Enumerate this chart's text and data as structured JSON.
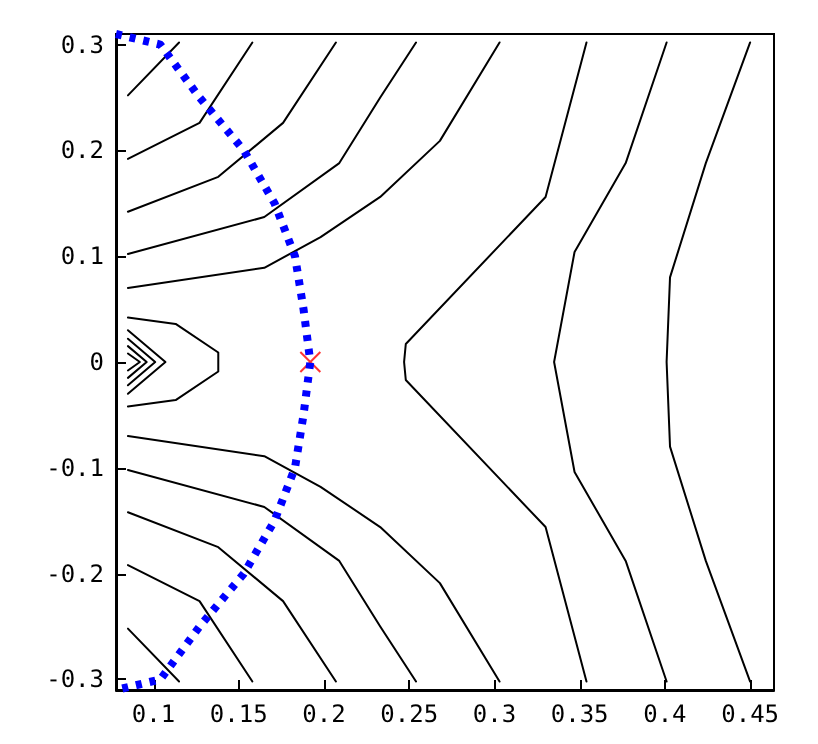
{
  "chart_data": {
    "type": "line",
    "xlim": [
      0.078,
      0.464
    ],
    "ylim": [
      -0.31,
      0.31
    ],
    "xticks": [
      0.1,
      0.15,
      0.2,
      0.25,
      0.3,
      0.35,
      0.4,
      0.45
    ],
    "yticks": [
      -0.3,
      -0.2,
      -0.1,
      0,
      0.1,
      0.2,
      0.3
    ],
    "grid": false,
    "marker": "none",
    "series": [
      {
        "color": "#000000",
        "x": [
          0.085,
          0.115
        ],
        "values": [
          0.252,
          0.302
        ]
      },
      {
        "color": "#000000",
        "x": [
          0.085,
          0.127,
          0.158
        ],
        "values": [
          0.192,
          0.226,
          0.302
        ]
      },
      {
        "color": "#000000",
        "x": [
          0.085,
          0.138,
          0.176,
          0.207
        ],
        "values": [
          0.142,
          0.175,
          0.226,
          0.302
        ]
      },
      {
        "color": "#000000",
        "x": [
          0.085,
          0.165,
          0.209,
          0.233,
          0.254
        ],
        "values": [
          0.102,
          0.137,
          0.188,
          0.25,
          0.302
        ]
      },
      {
        "color": "#000000",
        "x": [
          0.085,
          0.165,
          0.198,
          0.233,
          0.268,
          0.303
        ],
        "values": [
          0.07,
          0.089,
          0.118,
          0.156,
          0.209,
          0.302
        ]
      },
      {
        "color": "#000000",
        "x": [
          0.085,
          0.115
        ],
        "values": [
          -0.252,
          -0.302
        ]
      },
      {
        "color": "#000000",
        "x": [
          0.085,
          0.127,
          0.158
        ],
        "values": [
          -0.192,
          -0.226,
          -0.302
        ]
      },
      {
        "color": "#000000",
        "x": [
          0.085,
          0.138,
          0.176,
          0.207
        ],
        "values": [
          -0.142,
          -0.175,
          -0.226,
          -0.302
        ]
      },
      {
        "color": "#000000",
        "x": [
          0.085,
          0.165,
          0.209,
          0.233,
          0.254
        ],
        "values": [
          -0.102,
          -0.137,
          -0.188,
          -0.25,
          -0.302
        ]
      },
      {
        "color": "#000000",
        "x": [
          0.085,
          0.165,
          0.198,
          0.233,
          0.268,
          0.303
        ],
        "values": [
          -0.07,
          -0.089,
          -0.118,
          -0.156,
          -0.209,
          -0.302
        ]
      },
      {
        "color": "#000000",
        "x": [
          0.085,
          0.113,
          0.138,
          0.138,
          0.138,
          0.113,
          0.085
        ],
        "values": [
          0.042,
          0.036,
          0.009,
          0,
          -0.009,
          -0.036,
          -0.042
        ]
      },
      {
        "color": "#000000",
        "x": [
          0.085,
          0.107,
          0.085
        ],
        "values": [
          0.03,
          0,
          -0.03
        ]
      },
      {
        "color": "#000000",
        "x": [
          0.085,
          0.101,
          0.085
        ],
        "values": [
          0.022,
          0,
          -0.022
        ]
      },
      {
        "color": "#000000",
        "x": [
          0.085,
          0.096,
          0.085
        ],
        "values": [
          0.015,
          0,
          -0.015
        ]
      },
      {
        "color": "#000000",
        "x": [
          0.085,
          0.092,
          0.085
        ],
        "values": [
          0.008,
          0,
          -0.008
        ]
      },
      {
        "color": "#000000",
        "x": [
          0.354,
          0.33,
          0.248,
          0.247,
          0.248,
          0.33,
          0.354
        ],
        "values": [
          0.302,
          0.156,
          0.017,
          0,
          -0.017,
          -0.156,
          -0.302
        ]
      },
      {
        "color": "#000000",
        "x": [
          0.401,
          0.377,
          0.347,
          0.335,
          0.347,
          0.377,
          0.401
        ],
        "values": [
          0.302,
          0.188,
          0.104,
          0,
          -0.104,
          -0.188,
          -0.302
        ]
      },
      {
        "color": "#000000",
        "x": [
          0.45,
          0.424,
          0.403,
          0.401,
          0.403,
          0.424,
          0.45
        ],
        "values": [
          0.302,
          0.188,
          0.08,
          0,
          -0.08,
          -0.188,
          -0.302
        ]
      },
      {
        "color": "#0000ff",
        "line_style": "dotted",
        "x": [
          0.078,
          0.104,
          0.127,
          0.153,
          0.171,
          0.183,
          0.188,
          0.192,
          0.188,
          0.183,
          0.171,
          0.153,
          0.127,
          0.104,
          0.078
        ],
        "values": [
          0.31,
          0.3,
          0.25,
          0.2,
          0.15,
          0.1,
          0.05,
          0,
          -0.05,
          -0.1,
          -0.15,
          -0.2,
          -0.25,
          -0.3,
          -0.31
        ]
      },
      {
        "type": "scatter",
        "marker": "cross",
        "color": "#ff0000",
        "x": [
          0.192
        ],
        "values": [
          0
        ]
      }
    ]
  }
}
